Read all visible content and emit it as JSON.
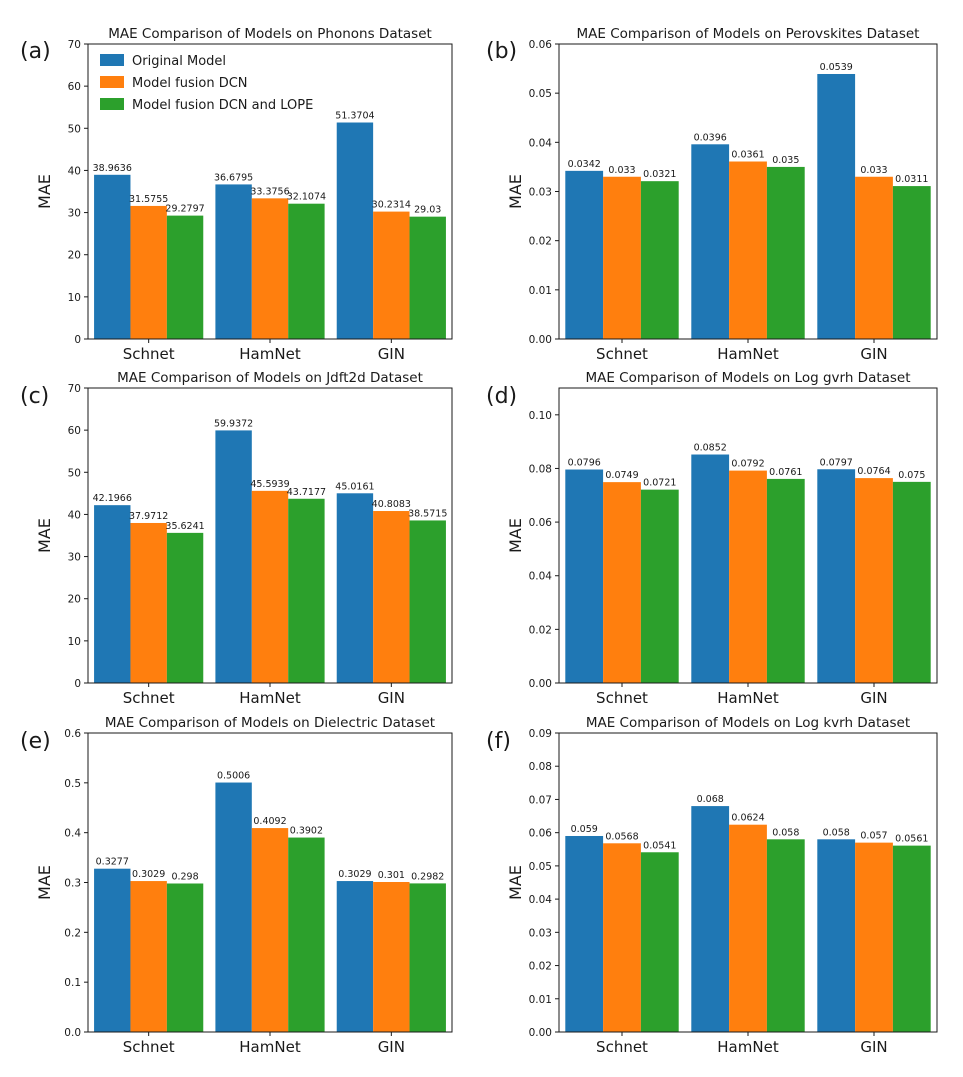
{
  "chart_data": [
    {
      "panel": "(a)",
      "type": "bar",
      "title": "MAE Comparison of Models on Phonons Dataset",
      "ylabel": "MAE",
      "categories": [
        "Schnet",
        "HamNet",
        "GIN"
      ],
      "ylim": [
        0,
        70
      ],
      "yticks": [
        0,
        10,
        20,
        30,
        40,
        50,
        60,
        70
      ],
      "ytick_labels": [
        "0",
        "10",
        "20",
        "30",
        "40",
        "50",
        "60",
        "70"
      ],
      "legend": "top-left",
      "series": [
        {
          "name": "Original Model",
          "values": [
            38.9636,
            36.6795,
            51.3704
          ],
          "labels": [
            "38.9636",
            "36.6795",
            "51.3704"
          ]
        },
        {
          "name": "Model fusion DCN",
          "values": [
            31.5755,
            33.3756,
            30.2314
          ],
          "labels": [
            "31.5755",
            "33.3756",
            "30.2314"
          ]
        },
        {
          "name": "Model fusion DCN and LOPE",
          "values": [
            29.2797,
            32.1074,
            29.03
          ],
          "labels": [
            "29.2797",
            "32.1074",
            "29.03"
          ]
        }
      ]
    },
    {
      "panel": "(b)",
      "type": "bar",
      "title": "MAE Comparison of Models on Perovskites Dataset",
      "ylabel": "MAE",
      "categories": [
        "Schnet",
        "HamNet",
        "GIN"
      ],
      "ylim": [
        0,
        0.06
      ],
      "yticks": [
        0,
        0.01,
        0.02,
        0.03,
        0.04,
        0.05,
        0.06
      ],
      "ytick_labels": [
        "0.00",
        "0.01",
        "0.02",
        "0.03",
        "0.04",
        "0.05",
        "0.06"
      ],
      "series": [
        {
          "values": [
            0.0342,
            0.0396,
            0.0539
          ],
          "labels": [
            "0.0342",
            "0.0396",
            "0.0539"
          ]
        },
        {
          "values": [
            0.033,
            0.0361,
            0.033
          ],
          "labels": [
            "0.033",
            "0.0361",
            "0.033"
          ]
        },
        {
          "values": [
            0.0321,
            0.035,
            0.0311
          ],
          "labels": [
            "0.0321",
            "0.035",
            "0.0311"
          ]
        }
      ]
    },
    {
      "panel": "(c)",
      "type": "bar",
      "title": "MAE Comparison of Models on Jdft2d Dataset",
      "ylabel": "MAE",
      "categories": [
        "Schnet",
        "HamNet",
        "GIN"
      ],
      "ylim": [
        0,
        70
      ],
      "yticks": [
        0,
        10,
        20,
        30,
        40,
        50,
        60,
        70
      ],
      "ytick_labels": [
        "0",
        "10",
        "20",
        "30",
        "40",
        "50",
        "60",
        "70"
      ],
      "series": [
        {
          "values": [
            42.1966,
            59.9372,
            45.0161
          ],
          "labels": [
            "42.1966",
            "59.9372",
            "45.0161"
          ]
        },
        {
          "values": [
            37.9712,
            45.5939,
            40.8083
          ],
          "labels": [
            "37.9712",
            "45.5939",
            "40.8083"
          ]
        },
        {
          "values": [
            35.6241,
            43.7177,
            38.5715
          ],
          "labels": [
            "35.6241",
            "43.7177",
            "38.5715"
          ]
        }
      ]
    },
    {
      "panel": "(d)",
      "type": "bar",
      "title": "MAE Comparison of Models on Log gvrh Dataset",
      "ylabel": "MAE",
      "categories": [
        "Schnet",
        "HamNet",
        "GIN"
      ],
      "ylim": [
        0,
        0.11
      ],
      "yticks": [
        0,
        0.02,
        0.04,
        0.06,
        0.08,
        0.1
      ],
      "ytick_labels": [
        "0.00",
        "0.02",
        "0.04",
        "0.06",
        "0.08",
        "0.10"
      ],
      "series": [
        {
          "values": [
            0.0796,
            0.0852,
            0.0797
          ],
          "labels": [
            "0.0796",
            "0.0852",
            "0.0797"
          ]
        },
        {
          "values": [
            0.0749,
            0.0792,
            0.0764
          ],
          "labels": [
            "0.0749",
            "0.0792",
            "0.0764"
          ]
        },
        {
          "values": [
            0.0721,
            0.0761,
            0.075
          ],
          "labels": [
            "0.0721",
            "0.0761",
            "0.075"
          ]
        }
      ]
    },
    {
      "panel": "(e)",
      "type": "bar",
      "title": "MAE Comparison of Models on Dielectric Dataset",
      "ylabel": "MAE",
      "categories": [
        "Schnet",
        "HamNet",
        "GIN"
      ],
      "ylim": [
        0,
        0.6
      ],
      "yticks": [
        0,
        0.1,
        0.2,
        0.3,
        0.4,
        0.5,
        0.6
      ],
      "ytick_labels": [
        "0.0",
        "0.1",
        "0.2",
        "0.3",
        "0.4",
        "0.5",
        "0.6"
      ],
      "series": [
        {
          "values": [
            0.3277,
            0.5006,
            0.3029
          ],
          "labels": [
            "0.3277",
            "0.5006",
            "0.3029"
          ]
        },
        {
          "values": [
            0.3029,
            0.4092,
            0.301
          ],
          "labels": [
            "0.3029",
            "0.4092",
            "0.301"
          ]
        },
        {
          "values": [
            0.298,
            0.3902,
            0.2982
          ],
          "labels": [
            "0.298",
            "0.3902",
            "0.2982"
          ]
        }
      ]
    },
    {
      "panel": "(f)",
      "type": "bar",
      "title": "MAE Comparison of Models on Log kvrh Dataset",
      "ylabel": "MAE",
      "categories": [
        "Schnet",
        "HamNet",
        "GIN"
      ],
      "ylim": [
        0,
        0.09
      ],
      "yticks": [
        0,
        0.01,
        0.02,
        0.03,
        0.04,
        0.05,
        0.06,
        0.07,
        0.08,
        0.09
      ],
      "ytick_labels": [
        "0.00",
        "0.01",
        "0.02",
        "0.03",
        "0.04",
        "0.05",
        "0.06",
        "0.07",
        "0.08",
        "0.09"
      ],
      "series": [
        {
          "values": [
            0.059,
            0.068,
            0.058
          ],
          "labels": [
            "0.059",
            "0.068",
            "0.058"
          ]
        },
        {
          "values": [
            0.0568,
            0.0624,
            0.057
          ],
          "labels": [
            "0.0568",
            "0.0624",
            "0.057"
          ]
        },
        {
          "values": [
            0.0541,
            0.058,
            0.0561
          ],
          "labels": [
            "0.0541",
            "0.058",
            "0.0561"
          ]
        }
      ]
    }
  ],
  "colors": {
    "original": "#1f77b4",
    "dcn": "#ff7f0e",
    "dcn_lope": "#2ca02c"
  }
}
